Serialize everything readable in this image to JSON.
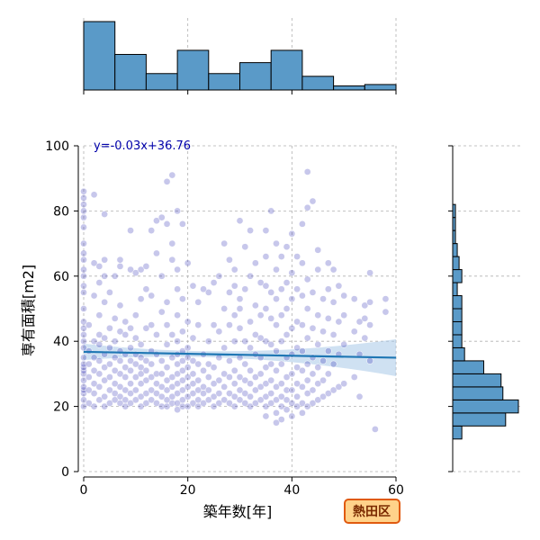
{
  "chart_data": {
    "type": "scatter",
    "title": "",
    "xlabel": "築年数[年]",
    "ylabel": "専有面積[m2]",
    "xlim": [
      0,
      60
    ],
    "ylim": [
      0,
      100
    ],
    "xticks": [
      "0",
      "20",
      "40",
      "60"
    ],
    "yticks": [
      "0",
      "20",
      "40",
      "60",
      "80",
      "100"
    ],
    "grid": true,
    "regression": {
      "label": "y=-0.03x+36.76",
      "slope": -0.03,
      "intercept": 36.76
    },
    "badge": "熱田区",
    "colors": {
      "point": "#2020b0",
      "regression": "#1f77b4",
      "band": "#a8c8e8",
      "hist": "#5a9ac8"
    },
    "x_hist": {
      "bin_edges": [
        0,
        6,
        12,
        18,
        24,
        30,
        36,
        42,
        48,
        54,
        60
      ],
      "counts": [
        100,
        52,
        24,
        58,
        24,
        40,
        58,
        20,
        6,
        8
      ]
    },
    "y_hist": {
      "bin_edges": [
        10,
        14,
        18,
        22,
        26,
        30,
        34,
        38,
        42,
        46,
        50,
        54,
        58,
        62,
        66,
        70,
        74,
        78,
        82,
        86,
        90,
        94
      ],
      "counts": [
        10,
        58,
        72,
        55,
        53,
        34,
        13,
        10,
        10,
        10,
        10,
        5,
        10,
        7,
        5,
        3,
        3,
        3,
        0,
        0,
        0
      ]
    },
    "points": [
      [
        0,
        20
      ],
      [
        0,
        22
      ],
      [
        0,
        24
      ],
      [
        0,
        25
      ],
      [
        0,
        26
      ],
      [
        0,
        28
      ],
      [
        0,
        30
      ],
      [
        0,
        31
      ],
      [
        0,
        32
      ],
      [
        0,
        33
      ],
      [
        0,
        35
      ],
      [
        0,
        38
      ],
      [
        0,
        40
      ],
      [
        0,
        42
      ],
      [
        0,
        44
      ],
      [
        0,
        46
      ],
      [
        0,
        50
      ],
      [
        0,
        55
      ],
      [
        0,
        57
      ],
      [
        0,
        60
      ],
      [
        0,
        62
      ],
      [
        0,
        65
      ],
      [
        0,
        67
      ],
      [
        0,
        70
      ],
      [
        0,
        75
      ],
      [
        0,
        78
      ],
      [
        0,
        80
      ],
      [
        0,
        82
      ],
      [
        0,
        84
      ],
      [
        0,
        86
      ],
      [
        1,
        21
      ],
      [
        1,
        25
      ],
      [
        1,
        29
      ],
      [
        1,
        33
      ],
      [
        1,
        37
      ],
      [
        1,
        45
      ],
      [
        2,
        20
      ],
      [
        2,
        24
      ],
      [
        2,
        27
      ],
      [
        2,
        31
      ],
      [
        2,
        35
      ],
      [
        2,
        40
      ],
      [
        2,
        54
      ],
      [
        2,
        64
      ],
      [
        2,
        85
      ],
      [
        3,
        22
      ],
      [
        3,
        26
      ],
      [
        3,
        30
      ],
      [
        3,
        34
      ],
      [
        3,
        39
      ],
      [
        3,
        42
      ],
      [
        3,
        48
      ],
      [
        3,
        58
      ],
      [
        3,
        63
      ],
      [
        4,
        20
      ],
      [
        4,
        23
      ],
      [
        4,
        28
      ],
      [
        4,
        32
      ],
      [
        4,
        36
      ],
      [
        4,
        41
      ],
      [
        4,
        52
      ],
      [
        4,
        60
      ],
      [
        4,
        65
      ],
      [
        4,
        79
      ],
      [
        5,
        21
      ],
      [
        5,
        25
      ],
      [
        5,
        29
      ],
      [
        5,
        33
      ],
      [
        5,
        38
      ],
      [
        5,
        44
      ],
      [
        5,
        55
      ],
      [
        6,
        22
      ],
      [
        6,
        24
      ],
      [
        6,
        27
      ],
      [
        6,
        31
      ],
      [
        6,
        35
      ],
      [
        6,
        40
      ],
      [
        6,
        47
      ],
      [
        6,
        60
      ],
      [
        7,
        21
      ],
      [
        7,
        23
      ],
      [
        7,
        26
      ],
      [
        7,
        30
      ],
      [
        7,
        34
      ],
      [
        7,
        37
      ],
      [
        7,
        43
      ],
      [
        7,
        51
      ],
      [
        7,
        63
      ],
      [
        7,
        65
      ],
      [
        8,
        20
      ],
      [
        8,
        22
      ],
      [
        8,
        25
      ],
      [
        8,
        29
      ],
      [
        8,
        32
      ],
      [
        8,
        36
      ],
      [
        8,
        42
      ],
      [
        8,
        46
      ],
      [
        9,
        21
      ],
      [
        9,
        24
      ],
      [
        9,
        27
      ],
      [
        9,
        31
      ],
      [
        9,
        34
      ],
      [
        9,
        38
      ],
      [
        9,
        44
      ],
      [
        9,
        62
      ],
      [
        9,
        74
      ],
      [
        10,
        22
      ],
      [
        10,
        25
      ],
      [
        10,
        29
      ],
      [
        10,
        33
      ],
      [
        10,
        36
      ],
      [
        10,
        41
      ],
      [
        10,
        48
      ],
      [
        10,
        61
      ],
      [
        11,
        20
      ],
      [
        11,
        23
      ],
      [
        11,
        27
      ],
      [
        11,
        30
      ],
      [
        11,
        32
      ],
      [
        11,
        35
      ],
      [
        11,
        39
      ],
      [
        11,
        53
      ],
      [
        11,
        62
      ],
      [
        12,
        21
      ],
      [
        12,
        24
      ],
      [
        12,
        28
      ],
      [
        12,
        31
      ],
      [
        12,
        34
      ],
      [
        12,
        44
      ],
      [
        12,
        56
      ],
      [
        12,
        63
      ],
      [
        13,
        22
      ],
      [
        13,
        25
      ],
      [
        13,
        29
      ],
      [
        13,
        33
      ],
      [
        13,
        37
      ],
      [
        13,
        45
      ],
      [
        13,
        54
      ],
      [
        13,
        74
      ],
      [
        14,
        21
      ],
      [
        14,
        24
      ],
      [
        14,
        27
      ],
      [
        14,
        30
      ],
      [
        14,
        36
      ],
      [
        14,
        42
      ],
      [
        14,
        67
      ],
      [
        14,
        77
      ],
      [
        15,
        20
      ],
      [
        15,
        23
      ],
      [
        15,
        26
      ],
      [
        15,
        30
      ],
      [
        15,
        34
      ],
      [
        15,
        49
      ],
      [
        15,
        60
      ],
      [
        15,
        78
      ],
      [
        16,
        20
      ],
      [
        16,
        22
      ],
      [
        16,
        25
      ],
      [
        16,
        28
      ],
      [
        16,
        32
      ],
      [
        16,
        39
      ],
      [
        16,
        45
      ],
      [
        16,
        52
      ],
      [
        16,
        76
      ],
      [
        16,
        89
      ],
      [
        17,
        21
      ],
      [
        17,
        23
      ],
      [
        17,
        26
      ],
      [
        17,
        29
      ],
      [
        17,
        35
      ],
      [
        17,
        42
      ],
      [
        17,
        65
      ],
      [
        17,
        70
      ],
      [
        17,
        91
      ],
      [
        18,
        19
      ],
      [
        18,
        21
      ],
      [
        18,
        24
      ],
      [
        18,
        27
      ],
      [
        18,
        30
      ],
      [
        18,
        33
      ],
      [
        18,
        36
      ],
      [
        18,
        40
      ],
      [
        18,
        48
      ],
      [
        18,
        56
      ],
      [
        18,
        62
      ],
      [
        18,
        80
      ],
      [
        19,
        20
      ],
      [
        19,
        22
      ],
      [
        19,
        25
      ],
      [
        19,
        28
      ],
      [
        19,
        31
      ],
      [
        19,
        34
      ],
      [
        19,
        37
      ],
      [
        19,
        43
      ],
      [
        19,
        53
      ],
      [
        19,
        76
      ],
      [
        20,
        20
      ],
      [
        20,
        23
      ],
      [
        20,
        26
      ],
      [
        20,
        29
      ],
      [
        20,
        32
      ],
      [
        20,
        35
      ],
      [
        20,
        38
      ],
      [
        20,
        46
      ],
      [
        20,
        64
      ],
      [
        21,
        21
      ],
      [
        21,
        24
      ],
      [
        21,
        27
      ],
      [
        21,
        30
      ],
      [
        21,
        34
      ],
      [
        21,
        41
      ],
      [
        21,
        57
      ],
      [
        22,
        20
      ],
      [
        22,
        22
      ],
      [
        22,
        25
      ],
      [
        22,
        28
      ],
      [
        22,
        33
      ],
      [
        22,
        45
      ],
      [
        22,
        52
      ],
      [
        23,
        21
      ],
      [
        23,
        24
      ],
      [
        23,
        26
      ],
      [
        23,
        31
      ],
      [
        23,
        36
      ],
      [
        23,
        56
      ],
      [
        24,
        22
      ],
      [
        24,
        25
      ],
      [
        24,
        29
      ],
      [
        24,
        33
      ],
      [
        24,
        40
      ],
      [
        24,
        55
      ],
      [
        25,
        20
      ],
      [
        25,
        23
      ],
      [
        25,
        27
      ],
      [
        25,
        32
      ],
      [
        25,
        45
      ],
      [
        25,
        58
      ],
      [
        26,
        21
      ],
      [
        26,
        24
      ],
      [
        26,
        28
      ],
      [
        26,
        35
      ],
      [
        26,
        43
      ],
      [
        26,
        60
      ],
      [
        27,
        22
      ],
      [
        27,
        26
      ],
      [
        27,
        30
      ],
      [
        27,
        38
      ],
      [
        27,
        50
      ],
      [
        27,
        70
      ],
      [
        28,
        21
      ],
      [
        28,
        24
      ],
      [
        28,
        29
      ],
      [
        28,
        34
      ],
      [
        28,
        45
      ],
      [
        28,
        55
      ],
      [
        28,
        65
      ],
      [
        29,
        20
      ],
      [
        29,
        23
      ],
      [
        29,
        27
      ],
      [
        29,
        31
      ],
      [
        29,
        40
      ],
      [
        29,
        48
      ],
      [
        29,
        57
      ],
      [
        29,
        62
      ],
      [
        30,
        22
      ],
      [
        30,
        25
      ],
      [
        30,
        29
      ],
      [
        30,
        35
      ],
      [
        30,
        44
      ],
      [
        30,
        50
      ],
      [
        30,
        53
      ],
      [
        30,
        77
      ],
      [
        31,
        21
      ],
      [
        31,
        24
      ],
      [
        31,
        28
      ],
      [
        31,
        33
      ],
      [
        31,
        40
      ],
      [
        31,
        56
      ],
      [
        31,
        69
      ],
      [
        32,
        20
      ],
      [
        32,
        23
      ],
      [
        32,
        27
      ],
      [
        32,
        31
      ],
      [
        32,
        38
      ],
      [
        32,
        46
      ],
      [
        32,
        60
      ],
      [
        32,
        74
      ],
      [
        33,
        21
      ],
      [
        33,
        25
      ],
      [
        33,
        29
      ],
      [
        33,
        36
      ],
      [
        33,
        42
      ],
      [
        33,
        51
      ],
      [
        33,
        64
      ],
      [
        34,
        22
      ],
      [
        34,
        26
      ],
      [
        34,
        30
      ],
      [
        34,
        35
      ],
      [
        34,
        41
      ],
      [
        34,
        48
      ],
      [
        34,
        58
      ],
      [
        35,
        17
      ],
      [
        35,
        20
      ],
      [
        35,
        23
      ],
      [
        35,
        27
      ],
      [
        35,
        32
      ],
      [
        35,
        40
      ],
      [
        35,
        50
      ],
      [
        35,
        57
      ],
      [
        35,
        66
      ],
      [
        35,
        74
      ],
      [
        36,
        21
      ],
      [
        36,
        24
      ],
      [
        36,
        28
      ],
      [
        36,
        33
      ],
      [
        36,
        39
      ],
      [
        36,
        47
      ],
      [
        36,
        55
      ],
      [
        36,
        80
      ],
      [
        37,
        15
      ],
      [
        37,
        18
      ],
      [
        37,
        22
      ],
      [
        37,
        26
      ],
      [
        37,
        31
      ],
      [
        37,
        37
      ],
      [
        37,
        45
      ],
      [
        37,
        53
      ],
      [
        37,
        62
      ],
      [
        37,
        70
      ],
      [
        38,
        16
      ],
      [
        38,
        20
      ],
      [
        38,
        23
      ],
      [
        38,
        27
      ],
      [
        38,
        33
      ],
      [
        38,
        40
      ],
      [
        38,
        48
      ],
      [
        38,
        56
      ],
      [
        38,
        66
      ],
      [
        39,
        19
      ],
      [
        39,
        22
      ],
      [
        39,
        25
      ],
      [
        39,
        29
      ],
      [
        39,
        35
      ],
      [
        39,
        42
      ],
      [
        39,
        50
      ],
      [
        39,
        58
      ],
      [
        39,
        69
      ],
      [
        40,
        17
      ],
      [
        40,
        21
      ],
      [
        40,
        25
      ],
      [
        40,
        30
      ],
      [
        40,
        36
      ],
      [
        40,
        44
      ],
      [
        40,
        53
      ],
      [
        40,
        61
      ],
      [
        40,
        73
      ],
      [
        41,
        20
      ],
      [
        41,
        23
      ],
      [
        41,
        27
      ],
      [
        41,
        32
      ],
      [
        41,
        38
      ],
      [
        41,
        46
      ],
      [
        41,
        56
      ],
      [
        41,
        66
      ],
      [
        42,
        18
      ],
      [
        42,
        21
      ],
      [
        42,
        26
      ],
      [
        42,
        31
      ],
      [
        42,
        37
      ],
      [
        42,
        45
      ],
      [
        42,
        54
      ],
      [
        42,
        64
      ],
      [
        42,
        76
      ],
      [
        43,
        20
      ],
      [
        43,
        24
      ],
      [
        43,
        28
      ],
      [
        43,
        33
      ],
      [
        43,
        41
      ],
      [
        43,
        50
      ],
      [
        43,
        59
      ],
      [
        43,
        81
      ],
      [
        43,
        92
      ],
      [
        44,
        21
      ],
      [
        44,
        25
      ],
      [
        44,
        30
      ],
      [
        44,
        35
      ],
      [
        44,
        44
      ],
      [
        44,
        55
      ],
      [
        44,
        83
      ],
      [
        45,
        22
      ],
      [
        45,
        27
      ],
      [
        45,
        32
      ],
      [
        45,
        39
      ],
      [
        45,
        48
      ],
      [
        45,
        62
      ],
      [
        45,
        68
      ],
      [
        46,
        23
      ],
      [
        46,
        28
      ],
      [
        46,
        34
      ],
      [
        46,
        43
      ],
      [
        46,
        53
      ],
      [
        47,
        24
      ],
      [
        47,
        30
      ],
      [
        47,
        37
      ],
      [
        47,
        47
      ],
      [
        47,
        56
      ],
      [
        47,
        64
      ],
      [
        48,
        25
      ],
      [
        48,
        33
      ],
      [
        48,
        42
      ],
      [
        48,
        52
      ],
      [
        48,
        62
      ],
      [
        49,
        26
      ],
      [
        49,
        36
      ],
      [
        49,
        46
      ],
      [
        49,
        57
      ],
      [
        50,
        27
      ],
      [
        50,
        39
      ],
      [
        50,
        48
      ],
      [
        50,
        54
      ],
      [
        52,
        29
      ],
      [
        52,
        43
      ],
      [
        52,
        53
      ],
      [
        53,
        23
      ],
      [
        53,
        36
      ],
      [
        53,
        46
      ],
      [
        54,
        41
      ],
      [
        54,
        47
      ],
      [
        54,
        51
      ],
      [
        55,
        34
      ],
      [
        55,
        45
      ],
      [
        55,
        52
      ],
      [
        55,
        61
      ],
      [
        56,
        13
      ],
      [
        58,
        49
      ],
      [
        58,
        53
      ]
    ]
  }
}
